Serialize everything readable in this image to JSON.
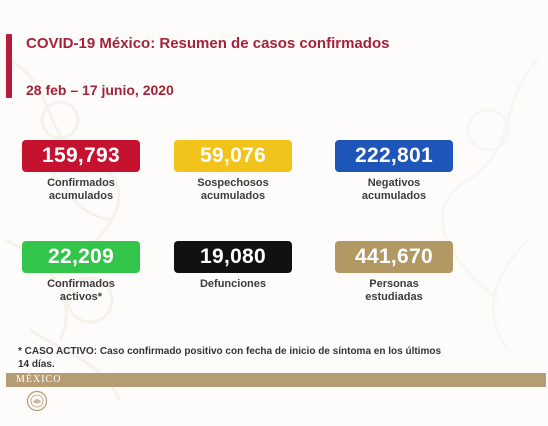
{
  "header": {
    "title": "COVID-19 México: Resumen de casos confirmados",
    "date_range": "28 feb – 17 junio, 2020"
  },
  "stats": {
    "confirmados": {
      "value": "159,793",
      "label_line1": "Confirmados",
      "label_line2": "acumulados",
      "color": "#c4122f"
    },
    "sospechosos": {
      "value": "59,076",
      "label_line1": "Sospechosos",
      "label_line2": "acumulados",
      "color": "#f2c31b"
    },
    "negativos": {
      "value": "222,801",
      "label_line1": "Negativos",
      "label_line2": "acumulados",
      "color": "#1e55b8"
    },
    "activos": {
      "value": "22,209",
      "label_line1": "Confirmados",
      "label_line2": "activos*",
      "color": "#33c44a"
    },
    "defunciones": {
      "value": "19,080",
      "label_line1": "Defunciones",
      "label_line2": "",
      "color": "#111111"
    },
    "estudiadas": {
      "value": "441,670",
      "label_line1": "Personas",
      "label_line2": "estudiadas",
      "color": "#b29862"
    }
  },
  "note": {
    "text": "* CASO ACTIVO: Caso confirmado positivo con fecha de inicio de síntoma en los últimos 14 días."
  },
  "footer": {
    "brand": "MÉXICO"
  },
  "colors": {
    "accent": "#b71b3a",
    "title": "#a3233b",
    "footer_band": "#b69c73"
  }
}
